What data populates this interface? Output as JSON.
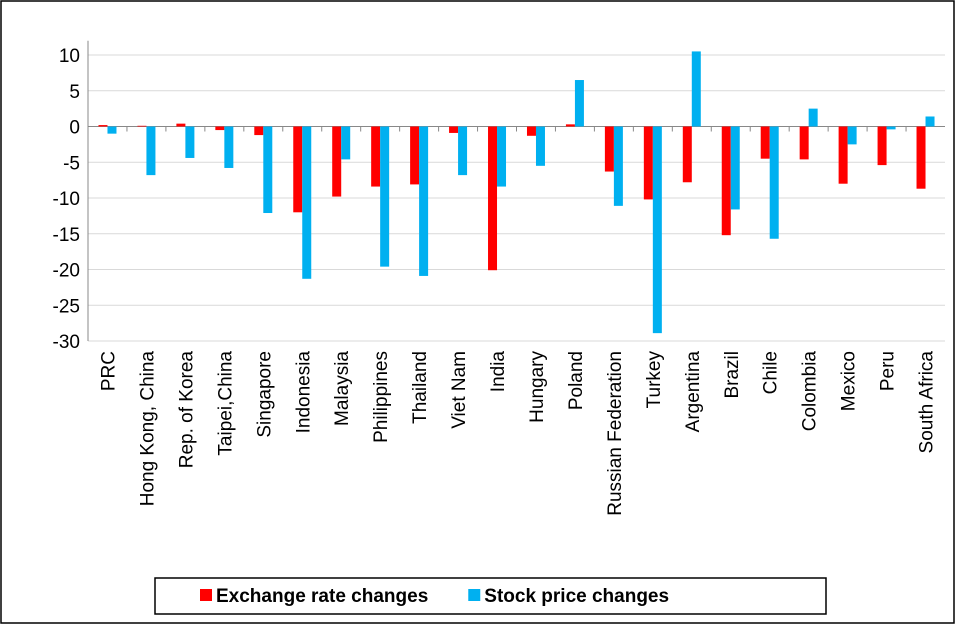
{
  "chart_data": {
    "type": "bar",
    "categories": [
      "PRC",
      "Hong Kong, China",
      "Rep. of Korea",
      "Taipei,China",
      "Singapore",
      "Indonesia",
      "Malaysia",
      "Philippines",
      "Thailand",
      "Viet Nam",
      "India",
      "Hungary",
      "Poland",
      "Russian Federation",
      "Turkey",
      "Argentina",
      "Brazil",
      "Chile",
      "Colombia",
      "Mexico",
      "Peru",
      "South Africa"
    ],
    "series": [
      {
        "name": "Exchange rate changes",
        "color": "#ff0000",
        "values": [
          0.2,
          0.1,
          0.4,
          -0.5,
          -1.2,
          -12.0,
          -9.8,
          -8.4,
          -8.1,
          -0.9,
          -20.1,
          -1.3,
          0.3,
          -6.3,
          -10.2,
          -7.8,
          -15.2,
          -4.5,
          -4.6,
          -8.0,
          -5.4,
          -8.7
        ]
      },
      {
        "name": "Stock price changes",
        "color": "#00b0f0",
        "values": [
          -1.0,
          -6.8,
          -4.4,
          -5.8,
          -12.1,
          -21.3,
          -4.6,
          -19.6,
          -20.9,
          -6.8,
          -8.4,
          -5.5,
          6.5,
          -11.1,
          -28.9,
          10.5,
          -11.6,
          -15.7,
          2.5,
          -2.5,
          -0.4,
          1.4
        ]
      }
    ],
    "ylim": [
      -30,
      12
    ],
    "yticks": [
      -30,
      -25,
      -20,
      -15,
      -10,
      -5,
      0,
      5,
      10
    ],
    "grid": true,
    "legend": "bottom"
  }
}
